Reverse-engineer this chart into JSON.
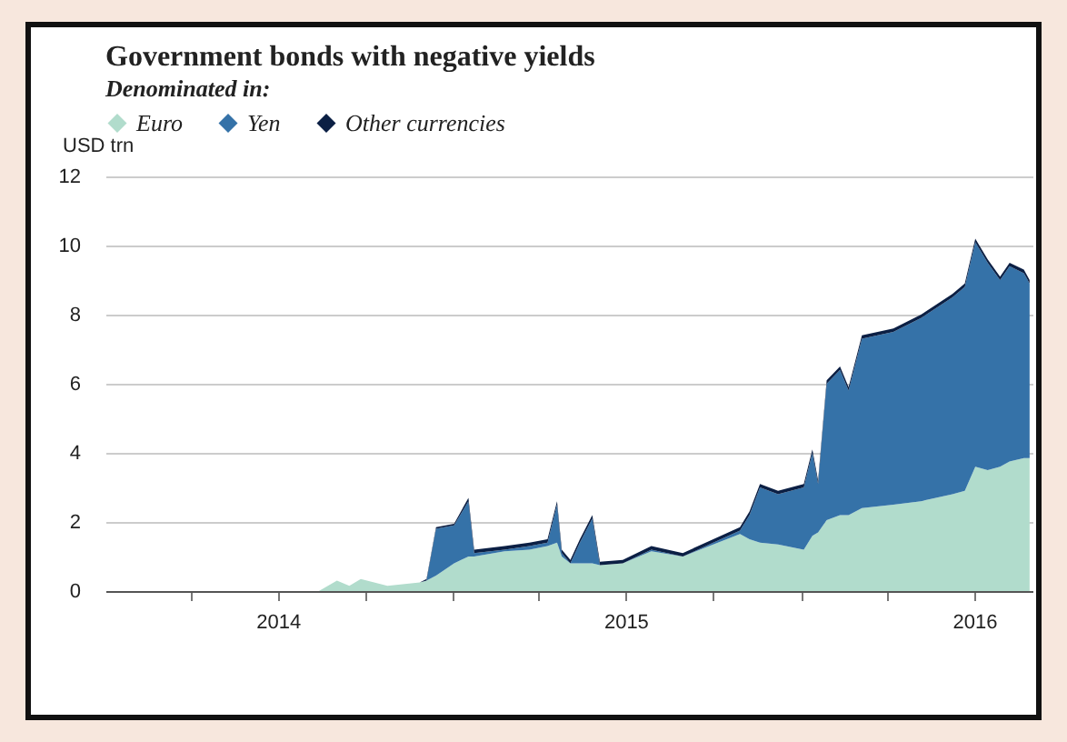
{
  "chart_data": {
    "type": "area",
    "stacked": true,
    "title": "Government bonds with negative yields",
    "legend_title": "Denominated in:",
    "ylabel": "USD trn",
    "x": [
      "2014-01-01",
      "2014-08-13",
      "2014-09-01",
      "2014-09-14",
      "2014-09-26",
      "2014-10-24",
      "2014-11-27",
      "2014-12-04",
      "2014-12-14",
      "2015-01-02",
      "2015-01-17",
      "2015-01-23",
      "2015-02-24",
      "2015-03-22",
      "2015-04-10",
      "2015-04-20",
      "2015-04-25",
      "2015-05-04",
      "2015-05-14",
      "2015-05-27",
      "2015-06-04",
      "2015-06-28",
      "2015-07-28",
      "2015-08-30",
      "2015-10-01",
      "2015-10-29",
      "2015-11-08",
      "2015-11-19",
      "2015-12-08",
      "2016-01-04",
      "2016-01-13",
      "2016-01-19",
      "2016-01-28",
      "2016-02-11",
      "2016-02-20",
      "2016-03-05",
      "2016-04-07",
      "2016-05-06",
      "2016-06-08",
      "2016-06-21",
      "2016-07-02",
      "2016-07-15",
      "2016-07-28",
      "2016-08-07",
      "2016-08-22",
      "2016-08-28"
    ],
    "series": [
      {
        "name": "Euro",
        "color": "#b1dccc",
        "values": [
          0,
          0,
          0.3,
          0.15,
          0.35,
          0.15,
          0.25,
          0.3,
          0.45,
          0.8,
          1.0,
          1.0,
          1.15,
          1.2,
          1.3,
          1.4,
          1.0,
          0.8,
          0.8,
          0.8,
          0.75,
          0.8,
          1.15,
          1.0,
          1.35,
          1.65,
          1.5,
          1.4,
          1.35,
          1.2,
          1.6,
          1.7,
          2.05,
          2.2,
          2.2,
          2.4,
          2.5,
          2.6,
          2.8,
          2.9,
          3.6,
          3.5,
          3.6,
          3.75,
          3.85,
          3.85
        ]
      },
      {
        "name": "Yen",
        "color": "#3572a8",
        "values": [
          0,
          0,
          0,
          0,
          0,
          0,
          0,
          0,
          1.35,
          1.1,
          1.6,
          0.1,
          0.05,
          0.1,
          0.1,
          1.1,
          0.1,
          0,
          0.6,
          1.3,
          0,
          0,
          0.05,
          0,
          0.05,
          0.1,
          0.7,
          1.6,
          1.45,
          1.8,
          2.4,
          1.4,
          3.95,
          4.2,
          3.6,
          4.9,
          5.0,
          5.3,
          5.7,
          5.9,
          6.5,
          6.0,
          5.4,
          5.65,
          5.35,
          5.05
        ]
      },
      {
        "name": "Other currencies",
        "color": "#0b1f44",
        "values": [
          0,
          0,
          0,
          0,
          0,
          0,
          0,
          0.05,
          0.05,
          0.05,
          0.1,
          0.1,
          0.1,
          0.1,
          0.1,
          0.1,
          0.1,
          0.1,
          0.1,
          0.1,
          0.1,
          0.1,
          0.1,
          0.1,
          0.1,
          0.1,
          0.1,
          0.1,
          0.1,
          0.1,
          0.1,
          0.1,
          0.1,
          0.1,
          0.1,
          0.1,
          0.1,
          0.1,
          0.1,
          0.1,
          0.1,
          0.1,
          0.1,
          0.1,
          0.1,
          0.1
        ]
      }
    ],
    "xlim": [
      "2014-01-01",
      "2016-08-31"
    ],
    "xticks": [
      {
        "value": "2014-04-01",
        "label": null
      },
      {
        "value": "2014-07-01",
        "label": "2014"
      },
      {
        "value": "2014-10-01",
        "label": null
      },
      {
        "value": "2015-01-01",
        "label": null
      },
      {
        "value": "2015-04-01",
        "label": null
      },
      {
        "value": "2015-07-01",
        "label": "2015"
      },
      {
        "value": "2015-10-01",
        "label": null
      },
      {
        "value": "2016-01-01",
        "label": null
      },
      {
        "value": "2016-04-01",
        "label": null
      },
      {
        "value": "2016-07-01",
        "label": "2016"
      }
    ],
    "ylim": [
      0,
      12
    ],
    "yticks": [
      0,
      2,
      4,
      6,
      8,
      10,
      12
    ],
    "grid": "y",
    "legend": "top left"
  }
}
